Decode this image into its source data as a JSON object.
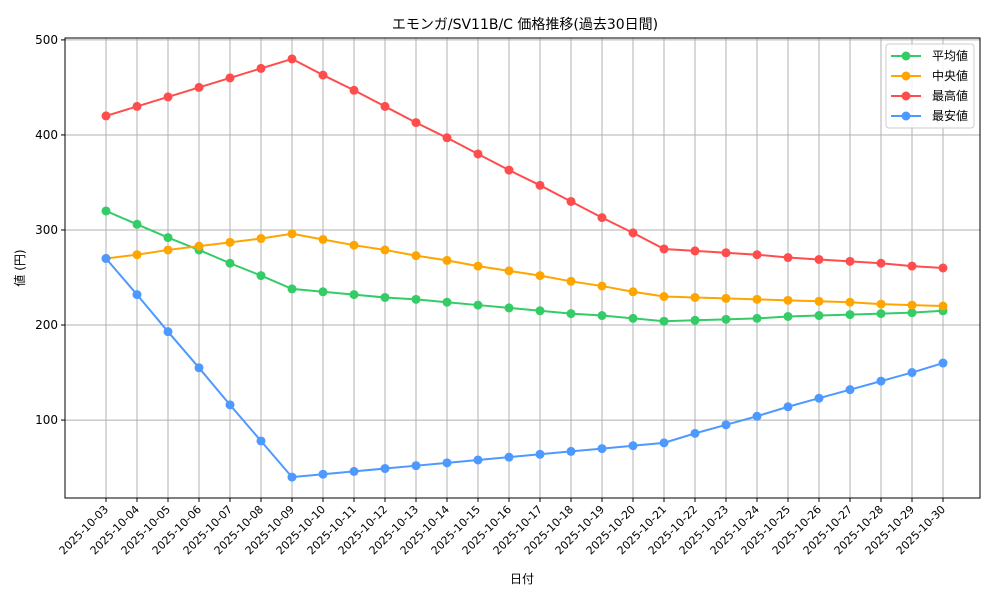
{
  "chart_data": {
    "type": "line",
    "title": "エモンガ/SV11B/C 価格推移(過去30日間)",
    "xlabel": "日付",
    "ylabel": "値 (円)",
    "ylim": [
      18,
      502
    ],
    "yticks": [
      100,
      200,
      300,
      400,
      500
    ],
    "grid": true,
    "legend_position": "upper right",
    "categories": [
      "2025-10-03",
      "2025-10-04",
      "2025-10-05",
      "2025-10-06",
      "2025-10-07",
      "2025-10-08",
      "2025-10-09",
      "2025-10-10",
      "2025-10-11",
      "2025-10-12",
      "2025-10-13",
      "2025-10-14",
      "2025-10-15",
      "2025-10-16",
      "2025-10-17",
      "2025-10-18",
      "2025-10-19",
      "2025-10-20",
      "2025-10-21",
      "2025-10-22",
      "2025-10-23",
      "2025-10-24",
      "2025-10-25",
      "2025-10-26",
      "2025-10-27",
      "2025-10-28",
      "2025-10-29",
      "2025-10-30"
    ],
    "series": [
      {
        "name": "平均値",
        "color": "#33cc66",
        "values": [
          320,
          306,
          292,
          279,
          265,
          252,
          238,
          235,
          232,
          229,
          227,
          224,
          221,
          218,
          215,
          212,
          210,
          207,
          204,
          205,
          206,
          207,
          209,
          210,
          211,
          212,
          213,
          215
        ]
      },
      {
        "name": "中央値",
        "color": "#ffa500",
        "values": [
          270,
          274,
          279,
          283,
          287,
          291,
          296,
          290,
          284,
          279,
          273,
          268,
          262,
          257,
          252,
          246,
          241,
          235,
          230,
          229,
          228,
          227,
          226,
          225,
          224,
          222,
          221,
          220
        ]
      },
      {
        "name": "最高値",
        "color": "#ff4d4d",
        "values": [
          420,
          430,
          440,
          450,
          460,
          470,
          480,
          463,
          447,
          430,
          413,
          397,
          380,
          363,
          347,
          330,
          313,
          297,
          280,
          278,
          276,
          274,
          271,
          269,
          267,
          265,
          262,
          260
        ]
      },
      {
        "name": "最安値",
        "color": "#4d99ff",
        "values": [
          270,
          232,
          193,
          155,
          116,
          78,
          40,
          43,
          46,
          49,
          52,
          55,
          58,
          61,
          64,
          67,
          70,
          73,
          76,
          86,
          95,
          104,
          114,
          123,
          132,
          141,
          150,
          160
        ]
      }
    ]
  }
}
